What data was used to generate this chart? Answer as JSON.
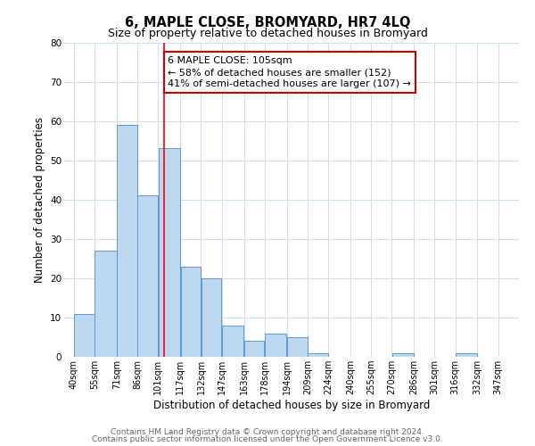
{
  "title": "6, MAPLE CLOSE, BROMYARD, HR7 4LQ",
  "subtitle": "Size of property relative to detached houses in Bromyard",
  "xlabel": "Distribution of detached houses by size in Bromyard",
  "ylabel": "Number of detached properties",
  "bar_left_edges": [
    40,
    55,
    71,
    86,
    101,
    117,
    132,
    147,
    163,
    178,
    194,
    209,
    224,
    240,
    255,
    270,
    286,
    301,
    316,
    332
  ],
  "bar_widths": [
    15,
    16,
    15,
    15,
    16,
    15,
    15,
    16,
    15,
    16,
    15,
    15,
    16,
    15,
    15,
    16,
    15,
    15,
    16,
    15
  ],
  "bar_heights": [
    11,
    27,
    59,
    41,
    53,
    23,
    20,
    8,
    4,
    6,
    5,
    1,
    0,
    0,
    0,
    1,
    0,
    0,
    1,
    0
  ],
  "bar_color": "#BDD7EE",
  "bar_edge_color": "#5B9BD5",
  "x_tick_labels": [
    "40sqm",
    "55sqm",
    "71sqm",
    "86sqm",
    "101sqm",
    "117sqm",
    "132sqm",
    "147sqm",
    "163sqm",
    "178sqm",
    "194sqm",
    "209sqm",
    "224sqm",
    "240sqm",
    "255sqm",
    "270sqm",
    "286sqm",
    "301sqm",
    "316sqm",
    "332sqm",
    "347sqm"
  ],
  "x_tick_positions": [
    40,
    55,
    71,
    86,
    101,
    117,
    132,
    147,
    163,
    178,
    194,
    209,
    224,
    240,
    255,
    270,
    286,
    301,
    316,
    332,
    347
  ],
  "red_line_x": 105,
  "ylim": [
    0,
    80
  ],
  "xlim": [
    33,
    362
  ],
  "annotation_line1": "6 MAPLE CLOSE: 105sqm",
  "annotation_line2": "← 58% of detached houses are smaller (152)",
  "annotation_line3": "41% of semi-detached houses are larger (107) →",
  "annotation_box_color": "#FFFFFF",
  "annotation_box_edge_color": "#CC0000",
  "footer_line1": "Contains HM Land Registry data © Crown copyright and database right 2024.",
  "footer_line2": "Contains public sector information licensed under the Open Government Licence v3.0.",
  "bg_color": "#FFFFFF",
  "grid_color": "#D0DFF0",
  "title_fontsize": 10.5,
  "subtitle_fontsize": 9,
  "tick_fontsize": 7,
  "ylabel_fontsize": 8.5,
  "xlabel_fontsize": 8.5,
  "footer_fontsize": 6.5,
  "annotation_fontsize": 8
}
